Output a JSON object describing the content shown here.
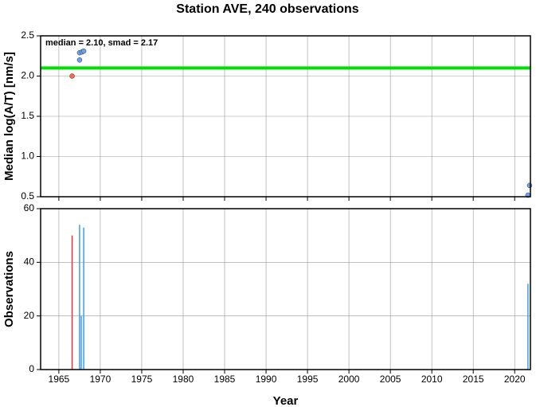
{
  "chart_data": [
    {
      "type": "scatter",
      "title": "Station AVE, 240 observations",
      "ylabel": "Median log(A/T) [nm/s]",
      "annotation": "median = 2.10, smad = 2.17",
      "xlim": [
        1962.8,
        2021.9
      ],
      "xticks": [
        1965,
        1970,
        1975,
        1980,
        1985,
        1990,
        1995,
        2000,
        2005,
        2010,
        2015,
        2020
      ],
      "xtick_labels": false,
      "ylim": [
        0.5,
        2.5
      ],
      "yticks": [
        0.5,
        {
          "value": 1,
          "label": "1.0"
        },
        1.5,
        {
          "value": 2,
          "label": "2.0"
        },
        2.5
      ],
      "grid": true,
      "reference_line": 2.1,
      "reference_color": "#00e000",
      "series": [
        {
          "color": "#ff6347",
          "x": [
            1966.6
          ],
          "values": [
            2.0
          ]
        },
        {
          "color": "#6ea0f0",
          "x": [
            1967.5,
            1967.5,
            1967.8,
            1968.0,
            2021.6,
            2021.8
          ],
          "values": [
            2.2,
            2.29,
            2.3,
            2.31,
            0.52,
            0.64
          ]
        }
      ]
    },
    {
      "type": "bar",
      "xlabel": "Year",
      "ylabel": "Observations",
      "xlim": [
        1962.8,
        2021.9
      ],
      "xticks": [
        1965,
        1970,
        1975,
        1980,
        1985,
        1990,
        1995,
        2000,
        2005,
        2010,
        2015,
        2020
      ],
      "xtick_labels": true,
      "ylim": [
        0,
        60
      ],
      "yticks": [
        0,
        20,
        40,
        60
      ],
      "grid": true,
      "series": [
        {
          "color": "#e8303a",
          "x": [
            1966.6
          ],
          "values": [
            50
          ]
        },
        {
          "color": "#3a9cf0",
          "x": [
            1967.5,
            1967.7,
            1968.0,
            2021.6
          ],
          "values": [
            54,
            20,
            53,
            32
          ]
        }
      ]
    }
  ]
}
